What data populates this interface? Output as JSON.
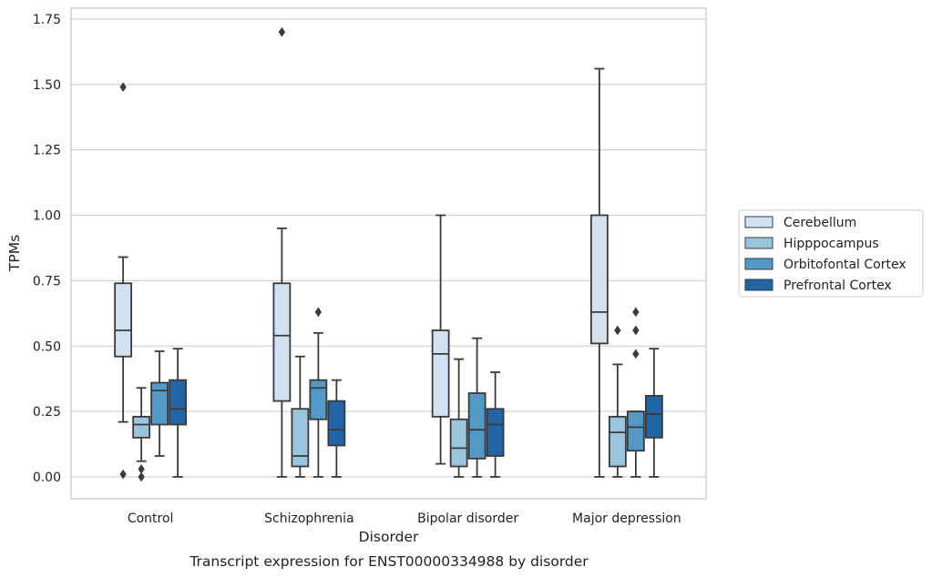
{
  "chart_data": {
    "type": "box",
    "title": "",
    "caption": "Transcript expression for ENST00000334988 by disorder",
    "xlabel": "Disorder",
    "ylabel": "TPMs",
    "ylim": [
      -0.08,
      1.79
    ],
    "yticks": [
      "0.00",
      "0.25",
      "0.50",
      "0.75",
      "1.00",
      "1.25",
      "1.50",
      "1.75"
    ],
    "ytick_values": [
      0,
      0.25,
      0.5,
      0.75,
      1.0,
      1.25,
      1.5,
      1.75
    ],
    "grid": "horizontal",
    "legend_position": "right-outside",
    "categories": [
      "Control",
      "Schizophrenia",
      "Bipolar disorder",
      "Major depression"
    ],
    "series": [
      {
        "name": "Cerebellum",
        "color": "#d1e1f0",
        "boxes": [
          {
            "min": 0.21,
            "q1": 0.46,
            "median": 0.56,
            "q3": 0.74,
            "max": 0.84,
            "outliers": [
              1.49,
              0.01
            ]
          },
          {
            "min": 0.0,
            "q1": 0.29,
            "median": 0.54,
            "q3": 0.74,
            "max": 0.95,
            "outliers": [
              1.7
            ]
          },
          {
            "min": 0.05,
            "q1": 0.23,
            "median": 0.47,
            "q3": 0.56,
            "max": 1.0,
            "outliers": []
          },
          {
            "min": 0.0,
            "q1": 0.51,
            "median": 0.63,
            "q3": 1.0,
            "max": 1.56,
            "outliers": []
          }
        ]
      },
      {
        "name": "Hipppocampus",
        "color": "#9ac5de",
        "boxes": [
          {
            "min": 0.06,
            "q1": 0.15,
            "median": 0.2,
            "q3": 0.23,
            "max": 0.34,
            "outliers": [
              0.03,
              0.0
            ]
          },
          {
            "min": 0.0,
            "q1": 0.04,
            "median": 0.08,
            "q3": 0.26,
            "max": 0.46,
            "outliers": []
          },
          {
            "min": 0.0,
            "q1": 0.04,
            "median": 0.11,
            "q3": 0.22,
            "max": 0.45,
            "outliers": []
          },
          {
            "min": 0.0,
            "q1": 0.04,
            "median": 0.17,
            "q3": 0.23,
            "max": 0.43,
            "outliers": [
              0.56
            ]
          }
        ]
      },
      {
        "name": "Orbitofontal Cortex",
        "color": "#5399c6",
        "boxes": [
          {
            "min": 0.08,
            "q1": 0.2,
            "median": 0.33,
            "q3": 0.36,
            "max": 0.48,
            "outliers": []
          },
          {
            "min": 0.0,
            "q1": 0.22,
            "median": 0.34,
            "q3": 0.37,
            "max": 0.55,
            "outliers": [
              0.63
            ]
          },
          {
            "min": 0.0,
            "q1": 0.07,
            "median": 0.18,
            "q3": 0.32,
            "max": 0.53,
            "outliers": []
          },
          {
            "min": 0.0,
            "q1": 0.1,
            "median": 0.19,
            "q3": 0.25,
            "max": 0.25,
            "outliers": [
              0.63,
              0.56,
              0.47
            ]
          }
        ]
      },
      {
        "name": "Prefrontal Cortex",
        "color": "#2265a7",
        "boxes": [
          {
            "min": 0.0,
            "q1": 0.2,
            "median": 0.26,
            "q3": 0.37,
            "max": 0.49,
            "outliers": []
          },
          {
            "min": 0.0,
            "q1": 0.12,
            "median": 0.18,
            "q3": 0.29,
            "max": 0.37,
            "outliers": []
          },
          {
            "min": 0.0,
            "q1": 0.08,
            "median": 0.2,
            "q3": 0.26,
            "max": 0.4,
            "outliers": []
          },
          {
            "min": 0.0,
            "q1": 0.15,
            "median": 0.24,
            "q3": 0.31,
            "max": 0.49,
            "outliers": []
          }
        ]
      }
    ]
  }
}
